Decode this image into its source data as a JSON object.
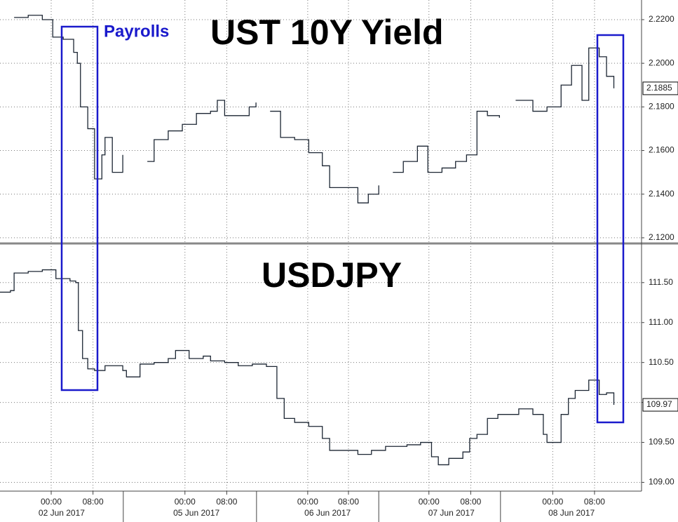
{
  "chart_data": [
    {
      "type": "line",
      "title": "UST 10Y Yield",
      "annotation": "Payrolls",
      "x": [
        -7.1,
        -4.4,
        -1.7,
        0.3,
        2.3,
        4.3,
        5.0,
        5.6,
        7.0,
        8.3,
        9.7,
        10.3,
        11.7,
        13.7,
        14.5,
        18.4,
        19.7,
        22.4,
        25.1,
        27.8,
        30.5,
        31.8,
        33.2,
        35.8,
        37.9,
        39.2,
        40.5,
        41.9,
        43.9,
        46.6,
        49.3,
        51.9,
        53.3,
        56.0,
        58.7,
        60.7,
        62.7,
        64.0,
        65.4,
        67.4,
        70.1,
        72.1,
        74.8,
        77.4,
        79.5,
        81.5,
        83.5,
        85.8,
        87.5,
        88.9,
        92.2,
        94.9,
        97.6,
        99.6,
        101.6,
        102.9,
        104.9,
        106.3,
        107.7
      ],
      "series": [
        {
          "name": "UST 10Y Yield",
          "color": "#1c2633",
          "values": [
            2.221,
            2.222,
            2.22,
            2.212,
            2.211,
            2.205,
            2.2,
            2.18,
            2.17,
            2.147,
            2.158,
            2.166,
            2.15,
            2.158,
            null,
            2.155,
            2.165,
            2.169,
            2.172,
            2.177,
            2.178,
            2.183,
            2.176,
            2.176,
            2.18,
            2.182,
            null,
            2.178,
            2.166,
            2.165,
            2.159,
            2.153,
            2.143,
            2.143,
            2.136,
            2.14,
            2.144,
            null,
            2.15,
            2.155,
            2.162,
            2.15,
            2.152,
            2.155,
            2.158,
            2.178,
            2.176,
            2.175,
            null,
            2.183,
            2.178,
            2.18,
            2.19,
            2.199,
            2.183,
            2.207,
            2.203,
            2.194,
            2.1885
          ]
        }
      ],
      "xlim": [
        -9.8,
        113
      ],
      "ylim": [
        2.1174,
        2.229
      ],
      "yticks": [
        {
          "value": 2.12,
          "label": "2.1200"
        },
        {
          "value": 2.14,
          "label": "2.1400"
        },
        {
          "value": 2.16,
          "label": "2.1600"
        },
        {
          "value": 2.18,
          "label": "2.1800"
        },
        {
          "value": 2.2,
          "label": "2.2000"
        },
        {
          "value": 2.22,
          "label": "2.2200"
        }
      ],
      "grid": true
    },
    {
      "type": "line",
      "title": "USDJPY",
      "x": [
        -9.8,
        -7.8,
        -7.1,
        -4.4,
        -1.7,
        0.9,
        3.6,
        4.7,
        5.2,
        6.0,
        7.0,
        8.3,
        10.3,
        13.7,
        14.4,
        17.0,
        19.7,
        22.4,
        23.8,
        26.4,
        29.1,
        30.5,
        33.2,
        35.8,
        38.5,
        41.2,
        43.2,
        44.6,
        46.6,
        49.3,
        51.9,
        53.3,
        56.0,
        58.7,
        61.3,
        64.0,
        68.1,
        70.7,
        72.8,
        74.1,
        76.1,
        78.8,
        80.1,
        81.5,
        83.5,
        85.5,
        88.2,
        89.5,
        92.2,
        94.2,
        94.9,
        97.6,
        99.0,
        100.3,
        102.9,
        104.9,
        106.3,
        107.7
      ],
      "series": [
        {
          "name": "USDJPY",
          "color": "#1c2633",
          "values": [
            111.38,
            111.4,
            111.62,
            111.64,
            111.66,
            111.55,
            111.52,
            111.5,
            110.9,
            110.55,
            110.42,
            110.4,
            110.46,
            110.4,
            110.32,
            110.48,
            110.5,
            110.55,
            110.65,
            110.55,
            110.58,
            110.52,
            110.5,
            110.46,
            110.48,
            110.45,
            110.05,
            109.8,
            109.75,
            109.7,
            109.55,
            109.4,
            109.4,
            109.35,
            109.4,
            109.45,
            109.47,
            109.5,
            109.32,
            109.22,
            109.3,
            109.38,
            109.55,
            109.6,
            109.8,
            109.85,
            109.85,
            109.92,
            109.85,
            109.6,
            109.5,
            109.85,
            110.05,
            110.15,
            110.28,
            110.1,
            110.12,
            109.97
          ]
        }
      ],
      "xlim": [
        -9.8,
        113
      ],
      "ylim": [
        108.89,
        111.99
      ],
      "yticks": [
        {
          "value": 109,
          "label": "109.00"
        },
        {
          "value": 109.5,
          "label": "109.50"
        },
        {
          "value": 110,
          "label": "110.00"
        },
        {
          "value": 110.5,
          "label": "110.50"
        },
        {
          "value": 111,
          "label": "111.00"
        },
        {
          "value": 111.5,
          "label": "111.50"
        }
      ],
      "xticks": [
        {
          "value": 0,
          "label": "00:00"
        },
        {
          "value": 8,
          "label": "08:00"
        },
        {
          "value": 25.6,
          "label": "00:00"
        },
        {
          "value": 33.6,
          "label": "08:00"
        },
        {
          "value": 49.1,
          "label": "00:00"
        },
        {
          "value": 56.9,
          "label": "08:00"
        },
        {
          "value": 72.3,
          "label": "00:00"
        },
        {
          "value": 80.3,
          "label": "08:00"
        },
        {
          "value": 96,
          "label": "00:00"
        },
        {
          "value": 104,
          "label": "08:00"
        }
      ],
      "date_labels": [
        {
          "value": 2,
          "label": "02 Jun 2017"
        },
        {
          "value": 27.8,
          "label": "05 Jun 2017"
        },
        {
          "value": 52.9,
          "label": "06 Jun 2017"
        },
        {
          "value": 76.6,
          "label": "07 Jun 2017"
        },
        {
          "value": 99.6,
          "label": "08 Jun 2017"
        }
      ],
      "day_dividers": [
        13.8,
        39.3,
        62.7,
        86
      ],
      "grid": true
    }
  ]
}
